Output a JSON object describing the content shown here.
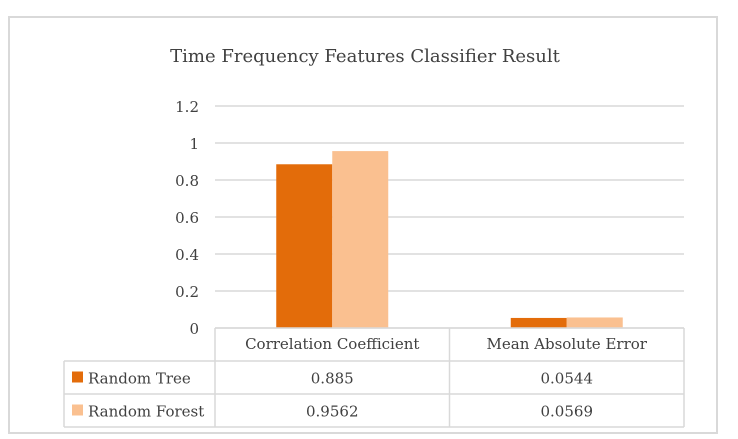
{
  "chart_data": {
    "type": "bar",
    "title": "Time Frequency Features Classifier Result",
    "categories": [
      "Correlation Coefficient",
      "Mean Absolute Error"
    ],
    "series": [
      {
        "name": "Random Tree",
        "values": [
          0.885,
          0.0544
        ],
        "value_labels": [
          "0.885",
          "0.0544"
        ],
        "color": "#e36c0a"
      },
      {
        "name": "Random Forest",
        "values": [
          0.9562,
          0.0569
        ],
        "value_labels": [
          "0.9562",
          "0.0569"
        ],
        "color": "#fac090"
      }
    ],
    "ylim": [
      0,
      1.2
    ],
    "yticks": [
      0,
      0.2,
      0.4,
      0.6,
      0.8,
      1,
      1.2
    ],
    "ytick_labels": [
      "0",
      "0.2",
      "0.4",
      "0.6",
      "0.8",
      "1",
      "1.2"
    ],
    "grid": true,
    "legend": "data-table"
  }
}
